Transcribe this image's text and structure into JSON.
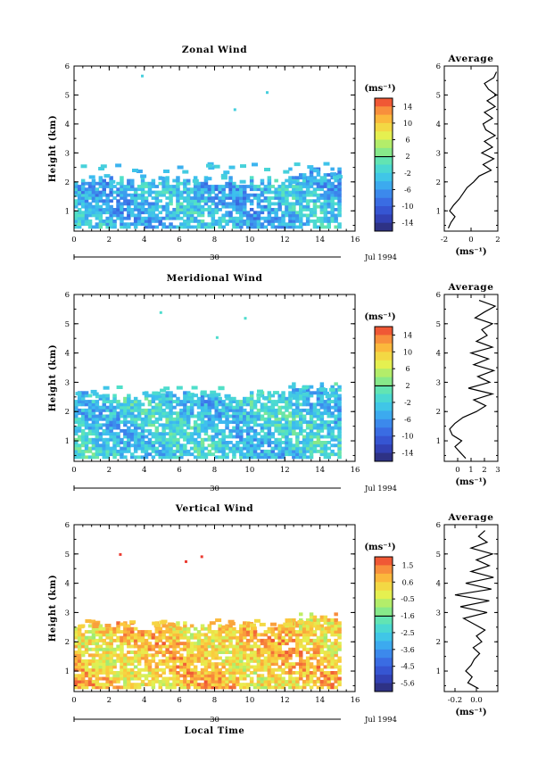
{
  "figure": {
    "date_label": "Jul 1994",
    "day_label": "30",
    "xlabel": "Local Time",
    "ylabel": "Height (km)",
    "unit": "(ms⁻¹)",
    "average_title": "Average"
  },
  "chart_data": [
    {
      "type": "heatmap",
      "title": "Zonal Wind",
      "xlabel": "",
      "ylabel": "Height (km)",
      "x_range": [
        0,
        16
      ],
      "y_range": [
        0.3,
        6
      ],
      "x_ticks": [
        0,
        2,
        4,
        6,
        8,
        10,
        12,
        14,
        16
      ],
      "y_ticks": [
        1,
        2,
        3,
        4,
        5,
        6
      ],
      "data_extent": {
        "x": [
          0,
          15
        ],
        "y": [
          0.4,
          2.0
        ]
      },
      "sparse_top": 2.7,
      "mean_value": -4,
      "colorbar": {
        "ticks": [
          14,
          10,
          6,
          2,
          -2,
          -6,
          -10,
          -14
        ],
        "range": [
          -16,
          16
        ]
      },
      "average_profile": {
        "xlim": [
          -2,
          2
        ],
        "x_ticks": [
          -2,
          0,
          2
        ],
        "xlabel": "(ms⁻¹)",
        "height": [
          0.4,
          0.6,
          0.8,
          1.0,
          1.2,
          1.4,
          1.6,
          1.8,
          2.0,
          2.2,
          2.4,
          2.6,
          2.8,
          3.0,
          3.2,
          3.4,
          3.6,
          3.8,
          4.0,
          4.2,
          4.4,
          4.6,
          4.8,
          5.0,
          5.2,
          5.4,
          5.6,
          5.8
        ],
        "value": [
          -1.7,
          -1.5,
          -1.2,
          -1.6,
          -1.3,
          -0.9,
          -0.6,
          -0.3,
          0.2,
          0.6,
          1.5,
          0.9,
          1.7,
          0.8,
          1.6,
          1.0,
          1.8,
          1.1,
          0.9,
          1.6,
          1.0,
          1.8,
          1.2,
          1.9,
          1.3,
          1.0,
          1.7,
          1.9
        ]
      }
    },
    {
      "type": "heatmap",
      "title": "Meridional Wind",
      "xlabel": "",
      "ylabel": "Height (km)",
      "x_range": [
        0,
        16
      ],
      "y_range": [
        0.3,
        6
      ],
      "x_ticks": [
        0,
        2,
        4,
        6,
        8,
        10,
        12,
        14,
        16
      ],
      "y_ticks": [
        1,
        2,
        3,
        4,
        5,
        6
      ],
      "data_extent": {
        "x": [
          0,
          15
        ],
        "y": [
          0.4,
          2.5
        ]
      },
      "sparse_top": 2.9,
      "mean_value": -2.5,
      "colorbar": {
        "ticks": [
          14,
          10,
          6,
          2,
          -2,
          -6,
          -10,
          -14
        ],
        "range": [
          -16,
          16
        ]
      },
      "average_profile": {
        "xlim": [
          -1,
          3
        ],
        "x_ticks": [
          0,
          1,
          2,
          3
        ],
        "xlabel": "(ms⁻¹)",
        "height": [
          0.4,
          0.6,
          0.8,
          1.0,
          1.2,
          1.4,
          1.6,
          1.8,
          2.0,
          2.2,
          2.4,
          2.6,
          2.8,
          3.0,
          3.2,
          3.4,
          3.6,
          3.8,
          4.0,
          4.2,
          4.4,
          4.6,
          4.8,
          5.0,
          5.2,
          5.4,
          5.6,
          5.8
        ],
        "value": [
          0.6,
          0.2,
          -0.2,
          0.3,
          -0.4,
          -0.6,
          -0.2,
          0.4,
          1.4,
          2.1,
          1.2,
          2.6,
          0.8,
          2.4,
          1.5,
          2.7,
          1.2,
          2.3,
          1.0,
          2.6,
          1.4,
          2.2,
          1.8,
          2.6,
          1.3,
          2.0,
          2.8,
          1.6
        ]
      }
    },
    {
      "type": "heatmap",
      "title": "Vertical Wind",
      "xlabel": "Local Time",
      "ylabel": "Height (km)",
      "x_range": [
        0,
        16
      ],
      "y_range": [
        0.3,
        6
      ],
      "x_ticks": [
        0,
        2,
        4,
        6,
        8,
        10,
        12,
        14,
        16
      ],
      "y_ticks": [
        1,
        2,
        3,
        4,
        5,
        6
      ],
      "data_extent": {
        "x": [
          0,
          15
        ],
        "y": [
          0.4,
          2.5
        ]
      },
      "sparse_top": 2.8,
      "mean_value": 0.4,
      "colorbar": {
        "ticks": [
          1.5,
          0.6,
          -0.5,
          -1.6,
          -2.5,
          -3.6,
          -4.5,
          -5.6
        ],
        "range": [
          -6,
          2
        ]
      },
      "average_profile": {
        "xlim": [
          -0.3,
          0.2
        ],
        "x_ticks": [
          -0.2,
          0.0
        ],
        "x_tick_labels": [
          "-0.2",
          "0.0"
        ],
        "xlabel": "(ms⁻¹)",
        "height": [
          0.4,
          0.6,
          0.8,
          1.0,
          1.2,
          1.4,
          1.6,
          1.8,
          2.0,
          2.2,
          2.4,
          2.6,
          2.8,
          3.0,
          3.2,
          3.4,
          3.6,
          3.8,
          4.0,
          4.2,
          4.4,
          4.6,
          4.8,
          5.0,
          5.2,
          5.4,
          5.6,
          5.8
        ],
        "value": [
          0.02,
          -0.08,
          -0.04,
          -0.1,
          -0.05,
          -0.02,
          0.03,
          -0.03,
          0.05,
          0.0,
          0.08,
          -0.02,
          -0.12,
          0.1,
          -0.15,
          0.12,
          -0.2,
          0.14,
          -0.1,
          0.16,
          -0.05,
          0.12,
          0.0,
          0.15,
          -0.05,
          0.1,
          0.02,
          0.08
        ]
      }
    }
  ]
}
